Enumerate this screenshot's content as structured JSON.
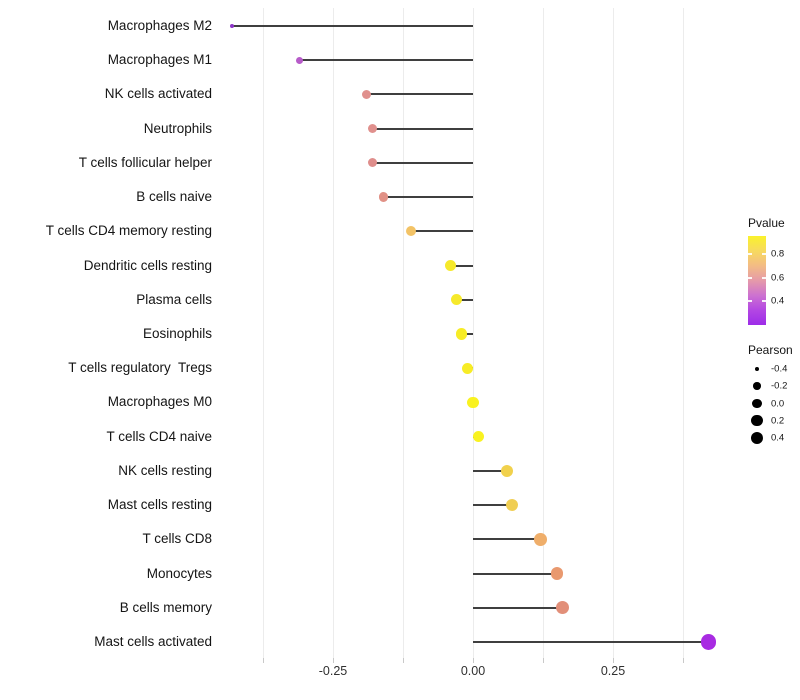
{
  "chart_data": {
    "type": "scatter",
    "variant": "horizontal-lollipop",
    "title": "",
    "xlabel": "",
    "ylabel": "",
    "grid": {
      "vertical": true,
      "horizontal": false
    },
    "baseline": 0.0,
    "categories": [
      "Macrophages M2",
      "Macrophages M1",
      "NK cells activated",
      "Neutrophils",
      "T cells follicular helper",
      "B cells naive",
      "T cells CD4 memory resting",
      "Dendritic cells resting",
      "Plasma cells",
      "Eosinophils",
      "T cells regulatory  Tregs",
      "Macrophages M0",
      "T cells CD4 naive",
      "NK cells resting",
      "Mast cells resting",
      "T cells CD8",
      "Monocytes",
      "B cells memory",
      "Mast cells activated"
    ],
    "series": [
      {
        "name": "Pearson correlation",
        "values": [
          -0.43,
          -0.31,
          -0.19,
          -0.18,
          -0.18,
          -0.16,
          -0.11,
          -0.04,
          -0.03,
          -0.02,
          -0.01,
          0.0,
          0.01,
          0.06,
          0.07,
          0.12,
          0.15,
          0.16,
          0.42
        ],
        "point_colors": [
          "#8C35C7",
          "#B75BC9",
          "#E0908D",
          "#E0908D",
          "#DF8E8C",
          "#E19186",
          "#F3C366",
          "#F6E92B",
          "#F6E92B",
          "#F7EC26",
          "#F7EC26",
          "#F9F220",
          "#F9F220",
          "#F1D14C",
          "#F0CE53",
          "#EFAE6A",
          "#E9996F",
          "#E28F79",
          "#A82BE2"
        ]
      }
    ],
    "encoding": {
      "x": "Pearson",
      "dot_size": "Pearson",
      "dot_color": "Pvalue"
    },
    "x_axis": {
      "tick_labels": [
        "-0.25",
        "0.00",
        "0.25"
      ],
      "tick_values": [
        -0.25,
        0.0,
        0.25
      ],
      "minor_tick_values": [
        -0.375,
        -0.125,
        0.125,
        0.375
      ],
      "range": [
        -0.4375,
        0.4375
      ]
    },
    "legends": {
      "pvalue": {
        "title": "Pvalue",
        "tick_labels": [
          "0.8",
          "0.6",
          "0.4"
        ],
        "tick_values": [
          0.8,
          0.6,
          0.4
        ],
        "bar_value_top": 0.95,
        "bar_value_bottom": 0.2,
        "gradient_stops": [
          "#FAF22B",
          "#F7DA5F",
          "#F3BC85",
          "#E59AA9",
          "#CD72D0",
          "#B347E3",
          "#9D2CE8"
        ]
      },
      "pearson": {
        "title": "Pearson",
        "entries": [
          {
            "label": "-0.4",
            "value": -0.4
          },
          {
            "label": "-0.2",
            "value": -0.2
          },
          {
            "label": "0.0",
            "value": 0.0
          },
          {
            "label": "0.2",
            "value": 0.2
          },
          {
            "label": "0.4",
            "value": 0.4
          }
        ],
        "dot_color": "#000000"
      }
    },
    "style_colors": {
      "stem": "#3F3F3F",
      "gridline": "#ECECEC",
      "axis_tick": "#C9C9C9",
      "axis_text": "#303030",
      "category_text": "#141414"
    }
  }
}
